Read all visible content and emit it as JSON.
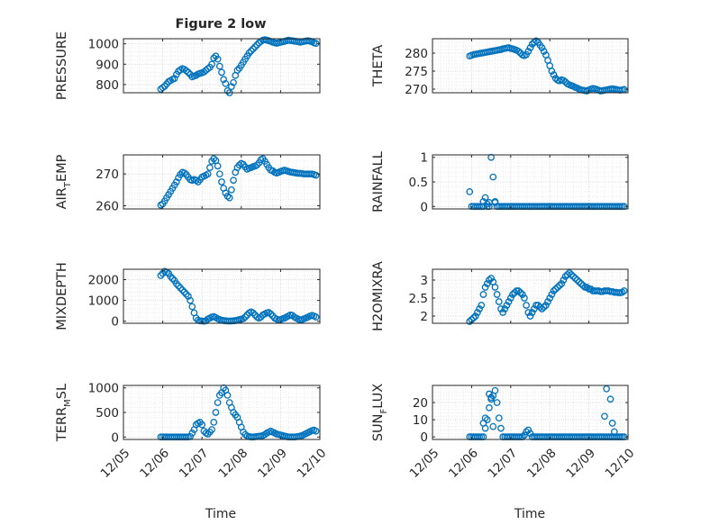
{
  "figure": {
    "title": "Figure 2 low"
  },
  "colors": {
    "marker": "#0072BD",
    "axis": "#262626",
    "grid": "#d0d0d0",
    "minor_grid": "#e4e4e4",
    "background": "#ffffff"
  },
  "x_axis": {
    "label": "Time",
    "tick_labels": [
      "12/05",
      "12/06",
      "12/07",
      "12/08",
      "12/09",
      "12/10"
    ],
    "xlim": [
      "12/05",
      "12/10"
    ]
  },
  "chart_data": [
    {
      "type": "scatter",
      "ylabel": "PRESSURE",
      "ylim": [
        760,
        1025
      ],
      "yticks": [
        800,
        900,
        1000
      ],
      "grid": true,
      "x": [
        0.95,
        1.0,
        1.05,
        1.1,
        1.15,
        1.2,
        1.25,
        1.3,
        1.35,
        1.4,
        1.45,
        1.5,
        1.55,
        1.6,
        1.65,
        1.7,
        1.75,
        1.8,
        1.85,
        1.9,
        1.95,
        2.0,
        2.05,
        2.1,
        2.15,
        2.2,
        2.25,
        2.3,
        2.35,
        2.4,
        2.45,
        2.5,
        2.55,
        2.6,
        2.65,
        2.7,
        2.75,
        2.8,
        2.85,
        2.9,
        2.95,
        3.0,
        3.05,
        3.1,
        3.15,
        3.2,
        3.25,
        3.3,
        3.35,
        3.4,
        3.45,
        3.5,
        3.55,
        3.6,
        3.65,
        3.7,
        3.75,
        3.8,
        3.85,
        3.9,
        3.95,
        4.0,
        4.05,
        4.1,
        4.15,
        4.2,
        4.25,
        4.3,
        4.35,
        4.4,
        4.45,
        4.5,
        4.55,
        4.6,
        4.65,
        4.7,
        4.75,
        4.8,
        4.85,
        4.9
      ],
      "y": [
        778,
        785,
        792,
        803,
        815,
        820,
        826,
        830,
        850,
        865,
        872,
        878,
        875,
        868,
        860,
        850,
        838,
        842,
        845,
        852,
        855,
        858,
        862,
        870,
        878,
        885,
        900,
        930,
        940,
        925,
        890,
        860,
        825,
        805,
        770,
        760,
        790,
        810,
        845,
        870,
        880,
        895,
        910,
        925,
        940,
        955,
        965,
        975,
        985,
        995,
        1005,
        1012,
        1018,
        1020,
        1018,
        1015,
        1012,
        1008,
        1005,
        1003,
        1005,
        1008,
        1010,
        1012,
        1015,
        1018,
        1016,
        1015,
        1013,
        1012,
        1010,
        1008,
        1010,
        1012,
        1014,
        1015,
        1013,
        1010,
        1005,
        1002
      ]
    },
    {
      "type": "scatter",
      "ylabel": "THETA",
      "ylim": [
        269,
        284
      ],
      "yticks": [
        270,
        275,
        280
      ],
      "grid": true,
      "x": [
        0.95,
        1.0,
        1.05,
        1.1,
        1.15,
        1.2,
        1.25,
        1.3,
        1.35,
        1.4,
        1.45,
        1.5,
        1.55,
        1.6,
        1.65,
        1.7,
        1.75,
        1.8,
        1.85,
        1.9,
        1.95,
        2.0,
        2.05,
        2.1,
        2.15,
        2.2,
        2.25,
        2.3,
        2.35,
        2.4,
        2.45,
        2.5,
        2.55,
        2.6,
        2.65,
        2.7,
        2.75,
        2.8,
        2.85,
        2.9,
        2.95,
        3.0,
        3.05,
        3.1,
        3.15,
        3.2,
        3.25,
        3.3,
        3.35,
        3.4,
        3.45,
        3.5,
        3.55,
        3.6,
        3.65,
        3.7,
        3.75,
        3.8,
        3.85,
        3.9,
        3.95,
        4.0,
        4.05,
        4.1,
        4.15,
        4.2,
        4.25,
        4.3,
        4.35,
        4.4,
        4.45,
        4.5,
        4.55,
        4.6,
        4.65,
        4.7,
        4.75,
        4.8,
        4.85,
        4.9
      ],
      "y": [
        279.2,
        279.4,
        279.6,
        279.7,
        279.8,
        279.9,
        280.0,
        280.1,
        280.2,
        280.3,
        280.4,
        280.5,
        280.6,
        280.7,
        280.8,
        280.9,
        281.0,
        281.2,
        281.3,
        281.4,
        281.5,
        281.3,
        281.2,
        281.0,
        280.8,
        280.5,
        280.0,
        279.5,
        279.3,
        279.6,
        280.5,
        281.5,
        282.5,
        283.0,
        283.4,
        283.0,
        282.2,
        281.5,
        280.5,
        279.5,
        278.0,
        276.5,
        275.0,
        274.0,
        273.0,
        272.5,
        272.3,
        272.6,
        272.4,
        272.0,
        271.5,
        271.2,
        271.0,
        270.8,
        270.5,
        270.3,
        270.0,
        269.8,
        269.7,
        269.6,
        269.5,
        269.8,
        270.0,
        270.2,
        270.1,
        269.9,
        269.7,
        269.5,
        269.6,
        269.7,
        269.8,
        269.9,
        270.0,
        270.1,
        270.0,
        269.9,
        269.8,
        269.7,
        269.8,
        269.9
      ]
    },
    {
      "type": "scatter",
      "ylabel": "AIR_TEMP",
      "ylim": [
        259,
        276
      ],
      "yticks": [
        260,
        270
      ],
      "grid": true,
      "x": [
        0.95,
        1.0,
        1.05,
        1.1,
        1.15,
        1.2,
        1.25,
        1.3,
        1.35,
        1.4,
        1.45,
        1.5,
        1.55,
        1.6,
        1.65,
        1.7,
        1.75,
        1.8,
        1.85,
        1.9,
        1.95,
        2.0,
        2.05,
        2.1,
        2.15,
        2.2,
        2.25,
        2.3,
        2.35,
        2.4,
        2.45,
        2.5,
        2.55,
        2.6,
        2.65,
        2.7,
        2.75,
        2.8,
        2.85,
        2.9,
        2.95,
        3.0,
        3.05,
        3.1,
        3.15,
        3.2,
        3.25,
        3.3,
        3.35,
        3.4,
        3.45,
        3.5,
        3.55,
        3.6,
        3.65,
        3.7,
        3.75,
        3.8,
        3.85,
        3.9,
        3.95,
        4.0,
        4.05,
        4.1,
        4.15,
        4.2,
        4.25,
        4.3,
        4.35,
        4.4,
        4.45,
        4.5,
        4.55,
        4.6,
        4.65,
        4.7,
        4.75,
        4.8,
        4.85,
        4.9
      ],
      "y": [
        260.2,
        260.6,
        261.5,
        262.5,
        263.5,
        264.5,
        265.5,
        266.5,
        267.5,
        268.8,
        269.8,
        270.5,
        270.3,
        269.8,
        269.0,
        268.2,
        268.0,
        268.3,
        268.0,
        267.5,
        268.2,
        269.0,
        269.3,
        269.6,
        270.0,
        272.0,
        274.0,
        274.8,
        274.2,
        272.5,
        270.0,
        267.5,
        265.5,
        264.0,
        263.0,
        262.5,
        265.0,
        268.0,
        270.5,
        272.0,
        272.8,
        273.3,
        273.0,
        272.2,
        271.5,
        271.8,
        272.0,
        272.3,
        272.5,
        272.8,
        273.5,
        274.5,
        274.8,
        274.0,
        273.0,
        272.0,
        271.2,
        271.0,
        270.5,
        270.3,
        270.5,
        270.8,
        271.0,
        271.2,
        271.0,
        270.8,
        270.6,
        270.5,
        270.4,
        270.3,
        270.2,
        270.2,
        270.1,
        270.0,
        270.0,
        270.0,
        270.0,
        270.0,
        269.8,
        269.6
      ]
    },
    {
      "type": "scatter",
      "ylabel": "RAINFALL",
      "ylim": [
        -0.05,
        1.05
      ],
      "yticks": [
        0,
        0.5,
        1
      ],
      "grid": true,
      "x": [
        0.95,
        1.0,
        1.05,
        1.1,
        1.15,
        1.2,
        1.25,
        1.3,
        1.35,
        1.4,
        1.45,
        1.5,
        1.55,
        1.6,
        1.65,
        1.7,
        1.75,
        1.8,
        1.85,
        1.9,
        1.95,
        2.0,
        2.05,
        2.1,
        2.15,
        2.2,
        2.25,
        2.3,
        2.35,
        2.4,
        2.45,
        2.5,
        2.55,
        2.6,
        2.65,
        2.7,
        2.75,
        2.8,
        2.85,
        2.9,
        2.95,
        3.0,
        3.05,
        3.1,
        3.15,
        3.2,
        3.25,
        3.3,
        3.35,
        3.4,
        3.45,
        3.5,
        3.55,
        3.6,
        3.65,
        3.7,
        3.75,
        3.8,
        3.85,
        3.9,
        3.95,
        4.0,
        4.05,
        4.1,
        4.15,
        4.2,
        4.25,
        4.3,
        4.35,
        4.4,
        4.45,
        4.5,
        4.55,
        4.6,
        4.65,
        4.7,
        4.75,
        4.8,
        4.85,
        4.9,
        1.3,
        1.4,
        1.45,
        1.6
      ],
      "y": [
        0.3,
        0,
        0,
        0,
        0,
        0,
        0,
        0,
        0.18,
        0,
        0,
        1.0,
        0.6,
        0.1,
        0,
        0,
        0,
        0,
        0,
        0,
        0,
        0,
        0,
        0,
        0,
        0,
        0,
        0,
        0,
        0,
        0,
        0,
        0,
        0,
        0,
        0,
        0,
        0,
        0,
        0,
        0,
        0,
        0,
        0,
        0,
        0,
        0,
        0,
        0,
        0,
        0,
        0,
        0,
        0,
        0,
        0,
        0,
        0,
        0,
        0,
        0,
        0,
        0,
        0,
        0,
        0,
        0,
        0,
        0,
        0,
        0,
        0,
        0,
        0,
        0,
        0,
        0,
        0,
        0,
        0,
        0.1,
        0.05,
        0.08,
        0.08
      ]
    },
    {
      "type": "scatter",
      "ylabel": "MIXDEPTH",
      "ylim": [
        -100,
        2500
      ],
      "yticks": [
        0,
        1000,
        2000
      ],
      "grid": true,
      "x": [
        0.95,
        1.0,
        1.05,
        1.1,
        1.15,
        1.2,
        1.25,
        1.3,
        1.35,
        1.4,
        1.45,
        1.5,
        1.55,
        1.6,
        1.65,
        1.7,
        1.75,
        1.8,
        1.85,
        1.9,
        1.95,
        2.0,
        2.05,
        2.1,
        2.15,
        2.2,
        2.25,
        2.3,
        2.35,
        2.4,
        2.45,
        2.5,
        2.55,
        2.6,
        2.65,
        2.7,
        2.75,
        2.8,
        2.85,
        2.9,
        2.95,
        3.0,
        3.05,
        3.1,
        3.15,
        3.2,
        3.25,
        3.3,
        3.35,
        3.4,
        3.45,
        3.5,
        3.55,
        3.6,
        3.65,
        3.7,
        3.75,
        3.8,
        3.85,
        3.9,
        3.95,
        4.0,
        4.05,
        4.1,
        4.15,
        4.2,
        4.25,
        4.3,
        4.35,
        4.4,
        4.45,
        4.5,
        4.55,
        4.6,
        4.65,
        4.7,
        4.75,
        4.8,
        4.85,
        4.9
      ],
      "y": [
        2200,
        2300,
        2400,
        2350,
        2300,
        2150,
        2050,
        1950,
        1800,
        1700,
        1600,
        1500,
        1400,
        1300,
        1200,
        1000,
        700,
        400,
        150,
        50,
        20,
        10,
        0,
        20,
        100,
        150,
        200,
        220,
        180,
        120,
        80,
        50,
        30,
        20,
        10,
        5,
        10,
        20,
        30,
        50,
        80,
        100,
        120,
        200,
        300,
        400,
        450,
        400,
        300,
        200,
        150,
        200,
        300,
        350,
        400,
        420,
        350,
        250,
        150,
        100,
        50,
        80,
        120,
        150,
        200,
        250,
        300,
        280,
        200,
        150,
        100,
        60,
        80,
        120,
        160,
        200,
        250,
        280,
        250,
        200
      ]
    },
    {
      "type": "scatter",
      "ylabel": "H2OMIXRA",
      "ylim": [
        1.8,
        3.3
      ],
      "yticks": [
        2,
        2.5,
        3
      ],
      "grid": true,
      "x": [
        0.95,
        1.0,
        1.05,
        1.1,
        1.15,
        1.2,
        1.25,
        1.3,
        1.35,
        1.4,
        1.45,
        1.5,
        1.55,
        1.6,
        1.65,
        1.7,
        1.75,
        1.8,
        1.85,
        1.9,
        1.95,
        2.0,
        2.05,
        2.1,
        2.15,
        2.2,
        2.25,
        2.3,
        2.35,
        2.4,
        2.45,
        2.5,
        2.55,
        2.6,
        2.65,
        2.7,
        2.75,
        2.8,
        2.85,
        2.9,
        2.95,
        3.0,
        3.05,
        3.1,
        3.15,
        3.2,
        3.25,
        3.3,
        3.35,
        3.4,
        3.45,
        3.5,
        3.55,
        3.6,
        3.65,
        3.7,
        3.75,
        3.8,
        3.85,
        3.9,
        3.95,
        4.0,
        4.05,
        4.1,
        4.15,
        4.2,
        4.25,
        4.3,
        4.35,
        4.4,
        4.45,
        4.5,
        4.55,
        4.6,
        4.65,
        4.7,
        4.75,
        4.8,
        4.85,
        4.9
      ],
      "y": [
        1.85,
        1.9,
        1.95,
        2.0,
        2.1,
        2.2,
        2.3,
        2.6,
        2.8,
        2.9,
        3.0,
        3.05,
        2.95,
        2.8,
        2.6,
        2.4,
        2.2,
        2.1,
        2.2,
        2.3,
        2.4,
        2.5,
        2.6,
        2.65,
        2.7,
        2.7,
        2.65,
        2.6,
        2.5,
        2.3,
        2.1,
        2.0,
        2.1,
        2.2,
        2.3,
        2.3,
        2.25,
        2.2,
        2.25,
        2.3,
        2.4,
        2.5,
        2.6,
        2.7,
        2.75,
        2.8,
        2.85,
        2.9,
        3.0,
        3.1,
        3.15,
        3.2,
        3.15,
        3.1,
        3.05,
        3.0,
        2.95,
        2.9,
        2.85,
        2.8,
        2.8,
        2.75,
        2.75,
        2.7,
        2.7,
        2.7,
        2.7,
        2.68,
        2.68,
        2.7,
        2.7,
        2.7,
        2.68,
        2.68,
        2.66,
        2.66,
        2.65,
        2.65,
        2.66,
        2.7
      ]
    },
    {
      "type": "scatter",
      "ylabel": "TERR_MSL",
      "ylim": [
        -50,
        1050
      ],
      "yticks": [
        0,
        500,
        1000
      ],
      "grid": true,
      "x": [
        0.95,
        1.0,
        1.05,
        1.1,
        1.15,
        1.2,
        1.25,
        1.3,
        1.35,
        1.4,
        1.45,
        1.5,
        1.55,
        1.6,
        1.65,
        1.7,
        1.75,
        1.8,
        1.85,
        1.9,
        1.95,
        2.0,
        2.05,
        2.1,
        2.15,
        2.2,
        2.25,
        2.3,
        2.35,
        2.4,
        2.45,
        2.5,
        2.55,
        2.6,
        2.65,
        2.7,
        2.75,
        2.8,
        2.85,
        2.9,
        2.95,
        3.0,
        3.05,
        3.1,
        3.15,
        3.2,
        3.25,
        3.3,
        3.35,
        3.4,
        3.45,
        3.5,
        3.55,
        3.6,
        3.65,
        3.7,
        3.75,
        3.8,
        3.85,
        3.9,
        3.95,
        4.0,
        4.05,
        4.1,
        4.15,
        4.2,
        4.25,
        4.3,
        4.35,
        4.4,
        4.45,
        4.5,
        4.55,
        4.6,
        4.65,
        4.7,
        4.75,
        4.8,
        4.85,
        4.9
      ],
      "y": [
        0,
        0,
        0,
        0,
        0,
        0,
        0,
        0,
        0,
        0,
        0,
        0,
        0,
        0,
        0,
        10,
        80,
        150,
        250,
        280,
        300,
        250,
        120,
        80,
        60,
        100,
        150,
        300,
        500,
        700,
        850,
        900,
        1000,
        950,
        850,
        700,
        600,
        500,
        450,
        400,
        300,
        200,
        100,
        50,
        20,
        10,
        0,
        0,
        5,
        10,
        15,
        20,
        30,
        50,
        80,
        100,
        120,
        100,
        80,
        60,
        50,
        40,
        30,
        20,
        10,
        0,
        0,
        0,
        0,
        5,
        10,
        20,
        30,
        50,
        70,
        90,
        110,
        130,
        140,
        120
      ]
    },
    {
      "type": "scatter",
      "ylabel": "SUN_FLUX",
      "ylim": [
        -1.5,
        30
      ],
      "yticks": [
        0,
        10,
        20
      ],
      "grid": true,
      "x": [
        0.95,
        1.0,
        1.05,
        1.1,
        1.15,
        1.2,
        1.25,
        1.3,
        1.35,
        1.4,
        1.45,
        1.5,
        1.55,
        1.6,
        1.65,
        1.7,
        1.75,
        1.8,
        1.85,
        1.9,
        1.95,
        2.0,
        2.05,
        2.1,
        2.15,
        2.2,
        2.25,
        2.3,
        2.35,
        2.4,
        2.45,
        2.5,
        2.55,
        2.6,
        2.65,
        2.7,
        2.75,
        2.8,
        2.85,
        2.9,
        2.95,
        3.0,
        3.05,
        3.1,
        3.15,
        3.2,
        3.25,
        3.3,
        3.35,
        3.4,
        3.45,
        3.5,
        3.55,
        3.6,
        3.65,
        3.7,
        3.75,
        3.8,
        3.85,
        3.9,
        3.95,
        4.0,
        4.05,
        4.1,
        4.15,
        4.2,
        4.25,
        4.3,
        4.35,
        4.4,
        4.45,
        4.5,
        4.55,
        4.6,
        4.65,
        4.7,
        4.75,
        4.8,
        4.85,
        4.9,
        1.3,
        1.35,
        1.45,
        1.5,
        1.55,
        4.4,
        4.45,
        4.55,
        4.6,
        4.65
      ],
      "y": [
        0,
        0,
        0,
        0,
        0,
        0,
        0,
        0,
        5,
        10,
        17,
        23,
        24,
        27,
        20,
        11,
        5,
        0,
        0,
        0,
        0,
        0,
        0,
        0,
        0,
        0,
        0,
        0,
        1,
        3,
        4,
        2,
        0,
        0,
        0,
        0,
        0,
        0,
        0,
        0,
        0,
        0,
        0,
        0,
        0,
        0,
        0,
        0,
        0,
        0,
        0,
        0,
        0,
        0,
        0,
        0,
        0,
        0,
        0,
        0,
        0,
        0,
        0,
        0,
        0,
        0,
        0,
        0,
        0,
        0,
        0,
        0,
        0,
        0,
        0,
        0,
        0,
        0,
        0,
        0,
        8,
        11,
        25,
        22,
        6,
        12,
        28,
        22,
        8,
        3
      ]
    }
  ]
}
